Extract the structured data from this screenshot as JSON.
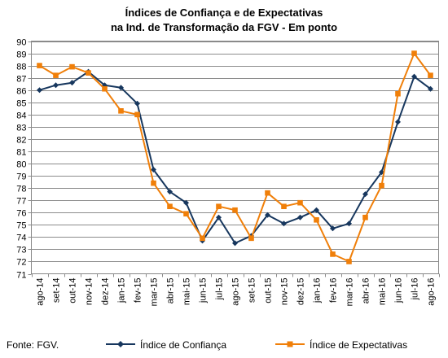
{
  "chart_data": {
    "type": "line",
    "title": "Índices de Confiança e de Expectativas",
    "subtitle": "na Ind. de Transformação da FGV - Em ponto",
    "xlabel": "",
    "ylabel": "",
    "ylim": [
      71,
      90
    ],
    "y_ticks": [
      71,
      72,
      73,
      74,
      75,
      76,
      77,
      78,
      79,
      80,
      81,
      82,
      83,
      84,
      85,
      86,
      87,
      88,
      89,
      90
    ],
    "grid": true,
    "legend_position": "bottom",
    "categories": [
      "ago-14",
      "set-14",
      "out-14",
      "nov-14",
      "dez-14",
      "jan-15",
      "fev-15",
      "mar-15",
      "abr-15",
      "mai-15",
      "jun-15",
      "jul-15",
      "ago-15",
      "set-15",
      "out-15",
      "nov-15",
      "dez-15",
      "jan-16",
      "fev-16",
      "mar-16",
      "abr-16",
      "mai-16",
      "jun-16",
      "jul-16",
      "ago-16"
    ],
    "series": [
      {
        "name": "Índice de Confiança",
        "color": "#17375e",
        "marker": "diamond",
        "values": [
          86.0,
          86.4,
          86.6,
          87.5,
          86.4,
          86.2,
          84.9,
          79.5,
          77.7,
          76.8,
          73.7,
          75.6,
          73.5,
          74.1,
          75.8,
          75.1,
          75.6,
          76.2,
          74.7,
          75.1,
          77.5,
          79.3,
          83.4,
          87.1,
          86.1
        ]
      },
      {
        "name": "Índice de Expectativas",
        "color": "#f07f09",
        "marker": "square",
        "values": [
          88.0,
          87.2,
          87.9,
          87.4,
          86.1,
          84.3,
          84.0,
          78.4,
          76.5,
          75.9,
          73.9,
          76.5,
          76.2,
          73.9,
          77.6,
          76.5,
          76.8,
          75.4,
          72.6,
          72.0,
          75.6,
          78.2,
          85.7,
          89.0,
          87.2
        ]
      }
    ],
    "source": "Fonte: FGV."
  }
}
